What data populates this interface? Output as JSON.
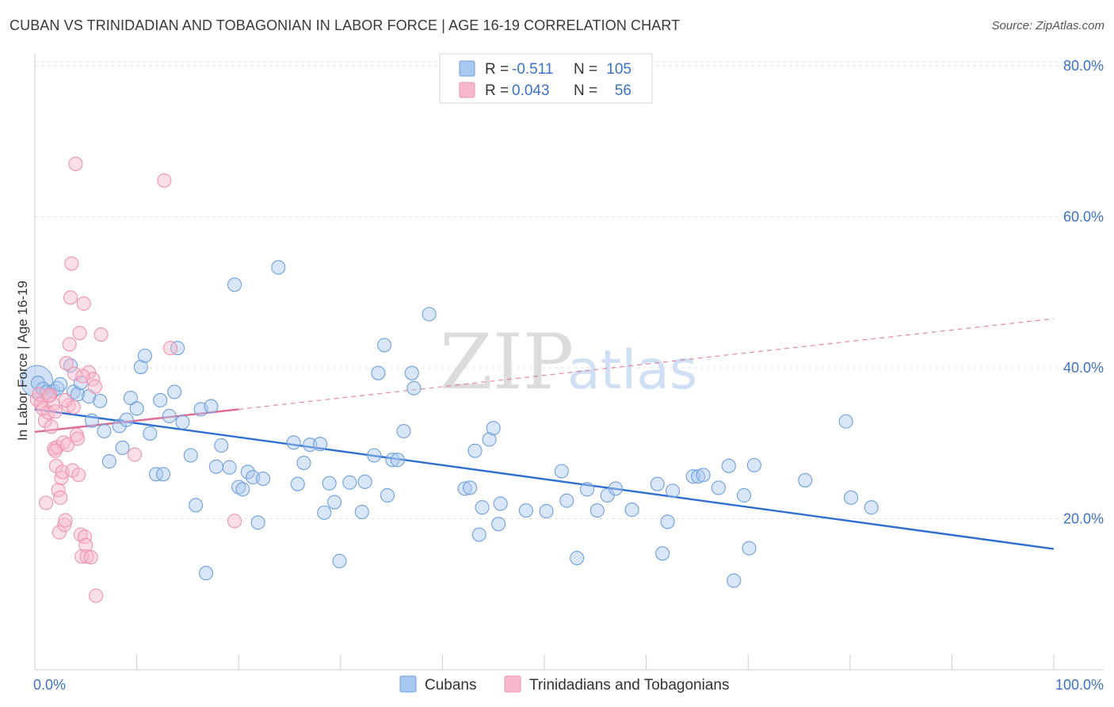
{
  "header": {
    "title": "CUBAN VS TRINIDADIAN AND TOBAGONIAN IN LABOR FORCE | AGE 16-19 CORRELATION CHART",
    "source": "Source: ZipAtlas.com"
  },
  "legend": {
    "rows": [
      {
        "r_label": "R =",
        "r_value": "-0.511",
        "n_label": "N =",
        "n_value": "105",
        "color": "#a9c8f0"
      },
      {
        "r_label": "R =",
        "r_value": "0.043",
        "n_label": "N =",
        "n_value": "56",
        "color": "#f7b8cb"
      }
    ]
  },
  "watermark": {
    "zip": "ZIP",
    "atlas": "atlas"
  },
  "chart_data": {
    "type": "scatter",
    "ylabel": "In Labor Force | Age 16-19",
    "xlim": [
      0,
      100
    ],
    "ylim": [
      0,
      85
    ],
    "x_tick_labels": [
      {
        "value": 0,
        "label": "0.0%"
      },
      {
        "value": 100,
        "label": "100.0%"
      }
    ],
    "y_tick_labels": [
      {
        "value": 20,
        "label": "20.0%"
      },
      {
        "value": 40,
        "label": "40.0%"
      },
      {
        "value": 60,
        "label": "60.0%"
      },
      {
        "value": 80,
        "label": "80.0%"
      }
    ],
    "grid": true,
    "legend_position": "top-center",
    "series": [
      {
        "name": "Cubans",
        "color": "#6f9fdc",
        "fill": "#a9c8f0",
        "line_color": "#2f6fd0",
        "trend": {
          "x0": 0,
          "y0": 34.5,
          "x1": 100,
          "y1": 16.0,
          "style": "solid"
        },
        "points": [
          [
            0.3,
            38.0
          ],
          [
            0.8,
            37.2
          ],
          [
            1.2,
            36.8
          ],
          [
            1.8,
            36.9
          ],
          [
            2.2,
            37.3
          ],
          [
            2.5,
            37.8
          ],
          [
            3.5,
            40.3
          ],
          [
            3.8,
            36.8
          ],
          [
            4.2,
            36.5
          ],
          [
            4.5,
            38.0
          ],
          [
            5.3,
            36.2
          ],
          [
            5.6,
            33.0
          ],
          [
            6.4,
            35.6
          ],
          [
            6.8,
            31.6
          ],
          [
            7.3,
            27.6
          ],
          [
            8.3,
            32.3
          ],
          [
            8.6,
            29.4
          ],
          [
            9.0,
            33.1
          ],
          [
            9.4,
            36.0
          ],
          [
            10.0,
            34.6
          ],
          [
            10.4,
            40.1
          ],
          [
            10.8,
            41.6
          ],
          [
            11.3,
            31.3
          ],
          [
            11.9,
            25.9
          ],
          [
            12.3,
            35.7
          ],
          [
            12.6,
            25.9
          ],
          [
            13.2,
            33.6
          ],
          [
            13.7,
            36.8
          ],
          [
            14.0,
            42.6
          ],
          [
            14.5,
            32.8
          ],
          [
            15.3,
            28.4
          ],
          [
            15.8,
            21.8
          ],
          [
            16.3,
            34.5
          ],
          [
            16.8,
            12.8
          ],
          [
            17.3,
            34.9
          ],
          [
            17.8,
            26.9
          ],
          [
            18.3,
            29.7
          ],
          [
            19.1,
            26.8
          ],
          [
            19.6,
            51.0
          ],
          [
            20.0,
            24.2
          ],
          [
            20.4,
            23.9
          ],
          [
            20.9,
            26.2
          ],
          [
            21.4,
            25.5
          ],
          [
            21.9,
            19.5
          ],
          [
            22.4,
            25.3
          ],
          [
            23.9,
            53.3
          ],
          [
            25.4,
            30.1
          ],
          [
            25.8,
            24.6
          ],
          [
            26.4,
            27.4
          ],
          [
            27.0,
            29.8
          ],
          [
            28.0,
            29.9
          ],
          [
            28.4,
            20.8
          ],
          [
            28.9,
            24.7
          ],
          [
            29.4,
            22.2
          ],
          [
            29.9,
            14.4
          ],
          [
            30.9,
            24.8
          ],
          [
            32.1,
            20.9
          ],
          [
            32.4,
            24.9
          ],
          [
            33.3,
            28.4
          ],
          [
            33.7,
            39.3
          ],
          [
            34.3,
            43.0
          ],
          [
            34.6,
            23.1
          ],
          [
            35.1,
            27.8
          ],
          [
            35.6,
            27.8
          ],
          [
            36.2,
            31.6
          ],
          [
            37.0,
            39.3
          ],
          [
            37.2,
            37.3
          ],
          [
            38.7,
            47.1
          ],
          [
            42.2,
            24.0
          ],
          [
            42.7,
            24.1
          ],
          [
            43.2,
            29.0
          ],
          [
            43.6,
            17.9
          ],
          [
            43.9,
            21.5
          ],
          [
            44.6,
            30.5
          ],
          [
            45.0,
            32.0
          ],
          [
            45.5,
            19.3
          ],
          [
            45.7,
            22.0
          ],
          [
            48.2,
            21.1
          ],
          [
            50.2,
            21.0
          ],
          [
            51.7,
            26.3
          ],
          [
            52.2,
            22.4
          ],
          [
            53.2,
            14.8
          ],
          [
            54.2,
            23.9
          ],
          [
            55.2,
            21.1
          ],
          [
            56.2,
            23.1
          ],
          [
            57.0,
            24.0
          ],
          [
            58.6,
            21.2
          ],
          [
            61.1,
            24.6
          ],
          [
            61.6,
            15.4
          ],
          [
            62.1,
            19.6
          ],
          [
            62.6,
            23.7
          ],
          [
            64.6,
            25.6
          ],
          [
            65.1,
            25.6
          ],
          [
            65.6,
            25.8
          ],
          [
            67.1,
            24.1
          ],
          [
            68.1,
            27.0
          ],
          [
            68.6,
            11.8
          ],
          [
            69.6,
            23.1
          ],
          [
            70.6,
            27.1
          ],
          [
            70.1,
            16.1
          ],
          [
            75.6,
            25.1
          ],
          [
            79.6,
            32.9
          ],
          [
            80.1,
            22.8
          ],
          [
            82.1,
            21.5
          ]
        ]
      },
      {
        "name": "Trinidadians and Tobagonians",
        "color": "#ee93ae",
        "fill": "#f7b8cb",
        "line_color": "#e06a92",
        "trend": {
          "x0": 0,
          "y0": 31.5,
          "x1": 20,
          "y1": 34.5,
          "style": "solid"
        },
        "trend_extension": {
          "x0": 20,
          "y0": 34.5,
          "x1": 100,
          "y1": 46.5,
          "style": "dashed"
        },
        "points": [
          [
            0.2,
            35.8
          ],
          [
            0.4,
            36.5
          ],
          [
            0.6,
            35.2
          ],
          [
            0.8,
            34.6
          ],
          [
            1.0,
            33.0
          ],
          [
            1.1,
            22.1
          ],
          [
            1.3,
            34.1
          ],
          [
            1.5,
            36.4
          ],
          [
            1.6,
            32.2
          ],
          [
            1.8,
            35.2
          ],
          [
            1.9,
            29.3
          ],
          [
            2.0,
            34.2
          ],
          [
            2.1,
            27.0
          ],
          [
            2.2,
            29.5
          ],
          [
            2.3,
            23.8
          ],
          [
            2.4,
            18.2
          ],
          [
            2.5,
            22.8
          ],
          [
            2.6,
            25.4
          ],
          [
            2.7,
            26.2
          ],
          [
            2.8,
            30.1
          ],
          [
            2.9,
            19.2
          ],
          [
            3.0,
            19.8
          ],
          [
            3.1,
            40.6
          ],
          [
            3.2,
            29.8
          ],
          [
            3.3,
            35.0
          ],
          [
            3.4,
            43.1
          ],
          [
            3.5,
            49.3
          ],
          [
            3.6,
            53.8
          ],
          [
            3.7,
            26.4
          ],
          [
            3.8,
            34.8
          ],
          [
            3.9,
            39.2
          ],
          [
            4.0,
            67.0
          ],
          [
            4.1,
            31.1
          ],
          [
            4.2,
            30.6
          ],
          [
            4.3,
            25.8
          ],
          [
            4.4,
            44.6
          ],
          [
            4.5,
            17.9
          ],
          [
            4.6,
            15.0
          ],
          [
            4.8,
            48.5
          ],
          [
            4.9,
            17.6
          ],
          [
            5.0,
            16.5
          ],
          [
            5.1,
            15.0
          ],
          [
            5.3,
            39.4
          ],
          [
            5.5,
            14.9
          ],
          [
            5.7,
            38.5
          ],
          [
            5.9,
            37.5
          ],
          [
            6.0,
            9.8
          ],
          [
            6.5,
            44.4
          ],
          [
            9.8,
            28.5
          ],
          [
            12.7,
            64.8
          ],
          [
            13.3,
            42.6
          ],
          [
            19.6,
            19.7
          ],
          [
            2.0,
            29.0
          ],
          [
            1.4,
            36.3
          ],
          [
            3.0,
            35.7
          ],
          [
            4.7,
            38.9
          ]
        ]
      }
    ]
  }
}
